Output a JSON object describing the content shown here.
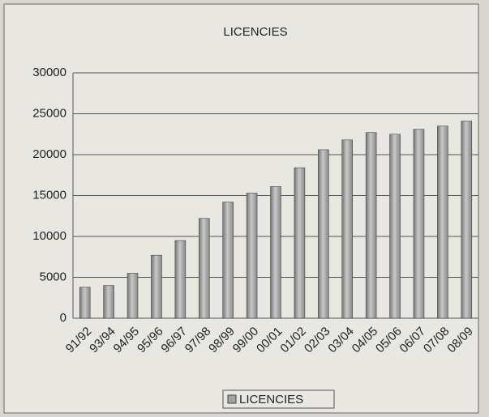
{
  "chart_data": {
    "type": "bar",
    "title": "LICENCIES",
    "categories": [
      "91/92",
      "93/94",
      "94/95",
      "95/96",
      "96/97",
      "97/98",
      "98/99",
      "99/00",
      "00/01",
      "01/02",
      "02/03",
      "03/04",
      "04/05",
      "05/06",
      "06/07",
      "07/08",
      "08/09"
    ],
    "series": [
      {
        "name": "LICENCIES",
        "color": "#a3a3a3",
        "values": [
          3800,
          4000,
          5500,
          7700,
          9500,
          12200,
          14200,
          15300,
          16100,
          18400,
          20600,
          21800,
          22700,
          22500,
          23100,
          23500,
          24100
        ]
      }
    ],
    "ylim": [
      0,
      30000
    ],
    "yticks": [
      0,
      5000,
      10000,
      15000,
      20000,
      25000,
      30000
    ],
    "grid": true,
    "legend": "bottom"
  }
}
